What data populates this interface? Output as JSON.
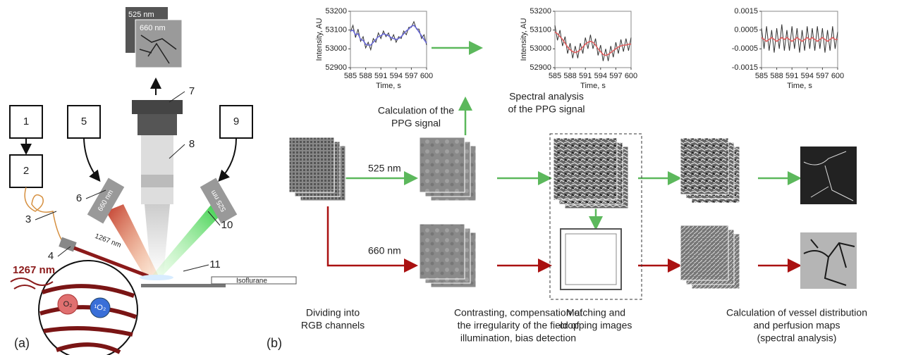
{
  "chart_data": [
    {
      "type": "line",
      "xlabel": "Time, s",
      "ylabel": "Intensity, AU",
      "x": [
        585,
        585.5,
        586,
        586.5,
        587,
        587.5,
        588,
        588.5,
        589,
        589.5,
        590,
        590.5,
        591,
        591.5,
        592,
        592.5,
        593,
        593.5,
        594,
        594.5,
        595,
        595.5,
        596,
        596.5,
        597,
        597.5,
        598,
        598.5,
        599,
        599.5,
        600
      ],
      "xlim": [
        585,
        600
      ],
      "xticks": [
        585,
        588,
        591,
        594,
        597,
        600
      ],
      "ylim": [
        52900,
        53200
      ],
      "yticks": [
        52900,
        53000,
        53100,
        53200
      ],
      "series": [
        {
          "color": "#333333",
          "values": [
            53090,
            53125,
            53060,
            53105,
            53040,
            53065,
            53005,
            53035,
            52995,
            53055,
            53035,
            53085,
            53055,
            53095,
            53065,
            53085,
            53045,
            53075,
            53035,
            53065,
            53055,
            53095,
            53075,
            53115,
            53115,
            53145,
            53105,
            53105,
            53055,
            53075,
            53020
          ]
        },
        {
          "color": "#6a6ad8",
          "values": [
            53095,
            53100,
            53075,
            53080,
            53050,
            53045,
            53025,
            53020,
            53020,
            53035,
            53050,
            53065,
            53070,
            53080,
            53075,
            53070,
            53060,
            53055,
            53050,
            53055,
            53065,
            53080,
            53095,
            53105,
            53120,
            53125,
            53110,
            53090,
            53070,
            53050,
            53030
          ]
        }
      ]
    },
    {
      "type": "line",
      "xlabel": "Time, s",
      "ylabel": "Intensity, AU",
      "x": [
        585,
        585.5,
        586,
        586.5,
        587,
        587.5,
        588,
        588.5,
        589,
        589.5,
        590,
        590.5,
        591,
        591.5,
        592,
        592.5,
        593,
        593.5,
        594,
        594.5,
        595,
        595.5,
        596,
        596.5,
        597,
        597.5,
        598,
        598.5,
        599,
        599.5,
        600
      ],
      "xlim": [
        585,
        600
      ],
      "xticks": [
        585,
        588,
        591,
        594,
        597,
        600
      ],
      "ylim": [
        52900,
        53200
      ],
      "yticks": [
        52900,
        53000,
        53100,
        53200
      ],
      "series": [
        {
          "color": "#333333",
          "values": [
            53125,
            53045,
            53100,
            53015,
            53065,
            52975,
            53030,
            52950,
            53015,
            52950,
            53030,
            52975,
            53060,
            53000,
            53075,
            53000,
            53055,
            52965,
            53020,
            52935,
            53000,
            52935,
            53015,
            52955,
            53035,
            52975,
            53050,
            52985,
            53055,
            52990,
            53060
          ]
        },
        {
          "color": "#e06060",
          "values": [
            53090,
            53080,
            53065,
            53050,
            53030,
            53010,
            52995,
            52985,
            52980,
            52985,
            52995,
            53010,
            53025,
            53035,
            53040,
            53035,
            53020,
            53000,
            52985,
            52970,
            52965,
            52970,
            52980,
            52990,
            53000,
            53010,
            53015,
            53020,
            53020,
            53025,
            53025
          ]
        }
      ]
    },
    {
      "type": "line",
      "xlabel": "Time, s",
      "x": [
        585,
        585.5,
        586,
        586.5,
        587,
        587.5,
        588,
        588.5,
        589,
        589.5,
        590,
        590.5,
        591,
        591.5,
        592,
        592.5,
        593,
        593.5,
        594,
        594.5,
        595,
        595.5,
        596,
        596.5,
        597,
        597.5,
        598,
        598.5,
        599,
        599.5,
        600
      ],
      "xlim": [
        585,
        600
      ],
      "xticks": [
        585,
        588,
        591,
        594,
        597,
        600
      ],
      "ylim": [
        -0.0015,
        0.0015
      ],
      "yticks": [
        -0.0015,
        -0.0005,
        0.0005,
        0.0015
      ],
      "series": [
        {
          "color": "#333333",
          "values": [
            0.0006,
            -0.0005,
            0.0007,
            -0.0006,
            0.0005,
            -0.0007,
            0.0006,
            -0.0005,
            0.0008,
            -0.0006,
            0.0005,
            -0.0006,
            0.0007,
            -0.0005,
            0.0006,
            -0.0007,
            0.0005,
            -0.0006,
            0.0007,
            -0.0005,
            0.0006,
            -0.0006,
            0.0007,
            -0.0005,
            0.0006,
            -0.0007,
            0.0005,
            -0.0006,
            0.0007,
            -0.0005,
            0.0004
          ]
        },
        {
          "color": "#e06060",
          "values": [
            0.0001,
            0,
            -0.0001,
            0,
            0.0001,
            0,
            -0.0001,
            0,
            0.0001,
            0,
            0.0001,
            0,
            -0.0001,
            0,
            0.0001,
            0,
            -0.0001,
            0,
            0.0001,
            0,
            0.0001,
            0,
            -0.0001,
            0,
            0.0001,
            0,
            -0.0001,
            0,
            0.0001,
            0,
            0
          ]
        }
      ]
    }
  ],
  "panel_a": {
    "label": "(a)",
    "numbers": [
      "1",
      "2",
      "3",
      "4",
      "5",
      "6",
      "7",
      "8",
      "9",
      "10",
      "11"
    ],
    "image_labels": [
      "525 nm",
      "660 nm"
    ],
    "device_labels": [
      "660 nm",
      "525 nm"
    ],
    "beam_label": "1267 nm",
    "inset_label": "1267 nm",
    "molecules": [
      "O₂",
      "¹O₂"
    ],
    "syringe_label": "Isoflurane"
  },
  "panel_b": {
    "label": "(b)",
    "process_labels": [
      {
        "lines": [
          "Calculation of the",
          "PPG signal"
        ]
      },
      {
        "lines": [
          "Spectral analysis",
          "of the PPG signal"
        ]
      }
    ],
    "channel_labels": [
      "525 nm",
      "660 nm"
    ],
    "captions": [
      {
        "lines": [
          "Dividing into",
          "RGB channels"
        ]
      },
      {
        "lines": [
          "Contrasting, compensation of",
          "the irregularity of the field of",
          "illumination, bias detection"
        ]
      },
      {
        "lines": [
          "Matching and",
          "cropping images"
        ]
      },
      {
        "lines": [
          "Calculation of vessel distribution",
          "and perfusion maps",
          "(spectral analysis)"
        ]
      }
    ]
  }
}
